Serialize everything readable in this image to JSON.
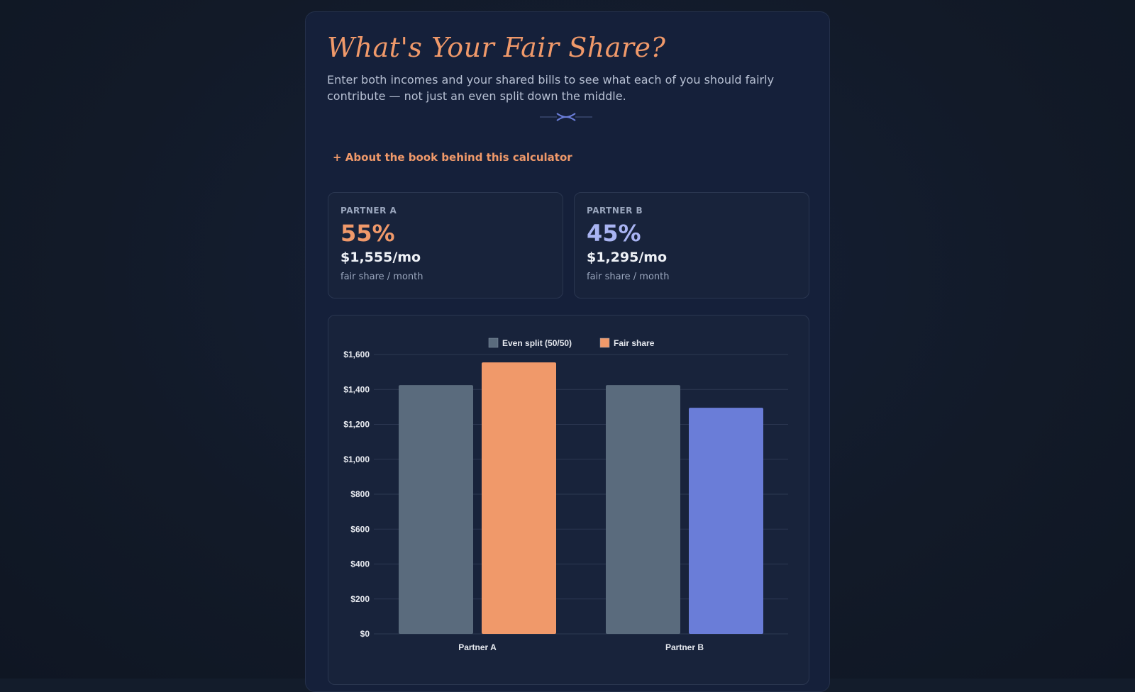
{
  "header": {
    "title": "What's Your Fair Share?",
    "subtitle": "Enter both incomes and your shared bills to see what each of you should fairly contribute — not just an even split down the middle."
  },
  "about_link": "+ About the book behind this calculator",
  "partners": [
    {
      "label": "PARTNER A",
      "percent": "55%",
      "amount": "$1,555/mo",
      "note": "fair share / month"
    },
    {
      "label": "PARTNER B",
      "percent": "45%",
      "amount": "$1,295/mo",
      "note": "fair share / month"
    }
  ],
  "colors": {
    "accent": "#f0996a",
    "partner_b": "#6a7dd8",
    "even_split": "#5a6b7d",
    "card_bg": "#18233b"
  },
  "icons": {
    "divider": "ornament-divider-icon"
  },
  "chart_data": {
    "type": "bar",
    "categories": [
      "Partner A",
      "Partner B"
    ],
    "series": [
      {
        "name": "Even split (50/50)",
        "values": [
          1425,
          1425
        ],
        "colors": [
          "#5a6b7d",
          "#5a6b7d"
        ]
      },
      {
        "name": "Fair share",
        "values": [
          1555,
          1295
        ],
        "colors": [
          "#f0996a",
          "#6a7dd8"
        ]
      }
    ],
    "ylim": [
      0,
      1600
    ],
    "yticks": [
      0,
      200,
      400,
      600,
      800,
      1000,
      1200,
      1400,
      1600
    ],
    "ytick_labels": [
      "$0",
      "$200",
      "$400",
      "$600",
      "$800",
      "$1,000",
      "$1,200",
      "$1,400",
      "$1,600"
    ],
    "legend_position": "top",
    "grid": true
  }
}
